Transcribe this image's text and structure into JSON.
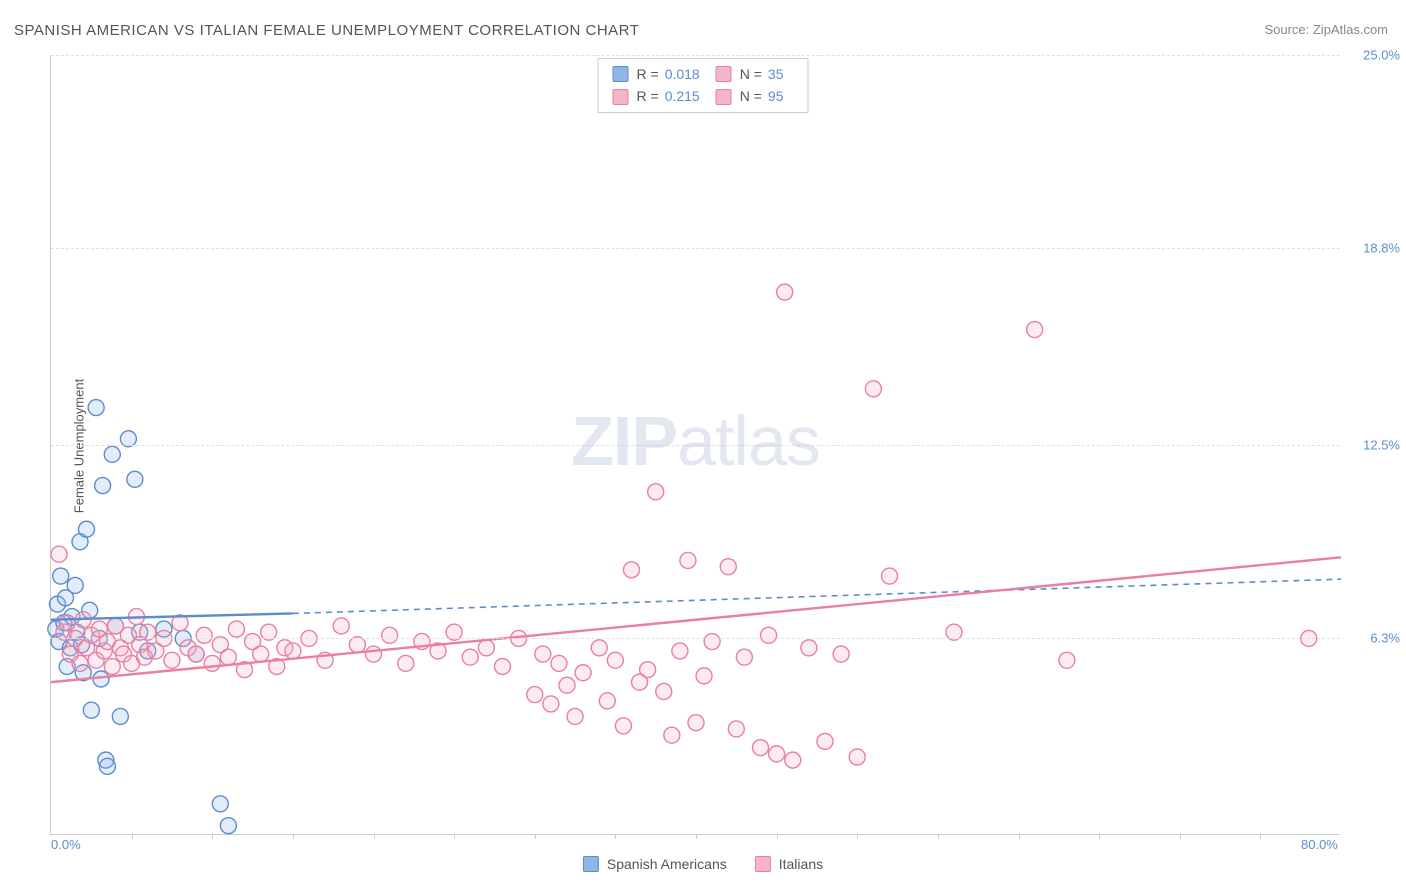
{
  "title": "SPANISH AMERICAN VS ITALIAN FEMALE UNEMPLOYMENT CORRELATION CHART",
  "source": "Source: ZipAtlas.com",
  "ylabel": "Female Unemployment",
  "watermark_zip": "ZIP",
  "watermark_atlas": "atlas",
  "chart": {
    "type": "scatter",
    "xlim": [
      0,
      80
    ],
    "ylim": [
      0,
      25
    ],
    "x_ticks_major": [
      0,
      80
    ],
    "x_ticks_major_labels": [
      "0.0%",
      "80.0%"
    ],
    "x_ticks_minor": [
      5,
      10,
      15,
      20,
      25,
      30,
      35,
      40,
      45,
      50,
      55,
      60,
      65,
      70,
      75
    ],
    "y_ticks": [
      6.3,
      12.5,
      18.8,
      25.0
    ],
    "y_tick_labels": [
      "6.3%",
      "12.5%",
      "18.8%",
      "25.0%"
    ],
    "background_color": "#ffffff",
    "grid_color": "#e0e0e0",
    "axis_color": "#cccccc",
    "tick_label_color": "#5b8dce",
    "marker_radius": 8,
    "marker_stroke_width": 1.4,
    "marker_fill_opacity": 0.25,
    "trend_line_width": 2.4,
    "series": [
      {
        "name": "Spanish Americans",
        "color_fill": "#8fb6e6",
        "color_stroke": "#5b8dce",
        "legend_R": "0.018",
        "legend_N": "35",
        "trend": {
          "x1": 0,
          "y1": 6.9,
          "x2_solid": 15,
          "y2_solid": 7.1,
          "x2_dash": 80,
          "y2_dash": 8.2
        },
        "points": [
          [
            0.3,
            6.6
          ],
          [
            0.4,
            7.4
          ],
          [
            0.5,
            6.2
          ],
          [
            0.6,
            8.3
          ],
          [
            0.8,
            6.8
          ],
          [
            0.9,
            7.6
          ],
          [
            1.0,
            5.4
          ],
          [
            1.2,
            6.0
          ],
          [
            1.3,
            7.0
          ],
          [
            1.5,
            8.0
          ],
          [
            1.6,
            6.5
          ],
          [
            1.8,
            9.4
          ],
          [
            1.9,
            6.1
          ],
          [
            2.0,
            5.2
          ],
          [
            2.2,
            9.8
          ],
          [
            2.4,
            7.2
          ],
          [
            2.5,
            4.0
          ],
          [
            2.8,
            13.7
          ],
          [
            3.0,
            6.3
          ],
          [
            3.1,
            5.0
          ],
          [
            3.2,
            11.2
          ],
          [
            3.4,
            2.4
          ],
          [
            3.5,
            2.2
          ],
          [
            3.8,
            12.2
          ],
          [
            4.0,
            6.7
          ],
          [
            4.3,
            3.8
          ],
          [
            4.8,
            12.7
          ],
          [
            5.2,
            11.4
          ],
          [
            5.5,
            6.5
          ],
          [
            6.0,
            5.9
          ],
          [
            7.0,
            6.6
          ],
          [
            8.2,
            6.3
          ],
          [
            9.0,
            5.8
          ],
          [
            10.5,
            1.0
          ],
          [
            11.0,
            0.3
          ]
        ]
      },
      {
        "name": "Italians",
        "color_fill": "#f4b5c7",
        "color_stroke": "#e97fa2",
        "legend_R": "0.215",
        "legend_N": "95",
        "trend": {
          "x1": 0,
          "y1": 4.9,
          "x2_solid": 80,
          "y2_solid": 8.9,
          "x2_dash": 80,
          "y2_dash": 8.9
        },
        "points": [
          [
            0.5,
            9.0
          ],
          [
            0.8,
            6.5
          ],
          [
            1.0,
            6.8
          ],
          [
            1.2,
            5.8
          ],
          [
            1.5,
            6.3
          ],
          [
            1.8,
            5.5
          ],
          [
            2.0,
            6.9
          ],
          [
            2.2,
            6.0
          ],
          [
            2.5,
            6.4
          ],
          [
            2.8,
            5.6
          ],
          [
            3.0,
            6.6
          ],
          [
            3.3,
            5.9
          ],
          [
            3.5,
            6.2
          ],
          [
            3.8,
            5.4
          ],
          [
            4.0,
            6.7
          ],
          [
            4.3,
            6.0
          ],
          [
            4.5,
            5.8
          ],
          [
            4.8,
            6.4
          ],
          [
            5.0,
            5.5
          ],
          [
            5.3,
            7.0
          ],
          [
            5.5,
            6.1
          ],
          [
            5.8,
            5.7
          ],
          [
            6.0,
            6.5
          ],
          [
            6.5,
            5.9
          ],
          [
            7.0,
            6.3
          ],
          [
            7.5,
            5.6
          ],
          [
            8.0,
            6.8
          ],
          [
            8.5,
            6.0
          ],
          [
            9.0,
            5.8
          ],
          [
            9.5,
            6.4
          ],
          [
            10.0,
            5.5
          ],
          [
            10.5,
            6.1
          ],
          [
            11.0,
            5.7
          ],
          [
            11.5,
            6.6
          ],
          [
            12.0,
            5.3
          ],
          [
            12.5,
            6.2
          ],
          [
            13.0,
            5.8
          ],
          [
            13.5,
            6.5
          ],
          [
            14.0,
            5.4
          ],
          [
            14.5,
            6.0
          ],
          [
            15.0,
            5.9
          ],
          [
            16.0,
            6.3
          ],
          [
            17.0,
            5.6
          ],
          [
            18.0,
            6.7
          ],
          [
            19.0,
            6.1
          ],
          [
            20.0,
            5.8
          ],
          [
            21.0,
            6.4
          ],
          [
            22.0,
            5.5
          ],
          [
            23.0,
            6.2
          ],
          [
            24.0,
            5.9
          ],
          [
            25.0,
            6.5
          ],
          [
            26.0,
            5.7
          ],
          [
            27.0,
            6.0
          ],
          [
            28.0,
            5.4
          ],
          [
            29.0,
            6.3
          ],
          [
            30.0,
            4.5
          ],
          [
            30.5,
            5.8
          ],
          [
            31.0,
            4.2
          ],
          [
            31.5,
            5.5
          ],
          [
            32.0,
            4.8
          ],
          [
            32.5,
            3.8
          ],
          [
            33.0,
            5.2
          ],
          [
            34.0,
            6.0
          ],
          [
            34.5,
            4.3
          ],
          [
            35.0,
            5.6
          ],
          [
            35.5,
            3.5
          ],
          [
            36.0,
            8.5
          ],
          [
            36.5,
            4.9
          ],
          [
            37.0,
            5.3
          ],
          [
            37.5,
            11.0
          ],
          [
            38.0,
            4.6
          ],
          [
            38.5,
            3.2
          ],
          [
            39.0,
            5.9
          ],
          [
            39.5,
            8.8
          ],
          [
            40.0,
            3.6
          ],
          [
            40.5,
            5.1
          ],
          [
            41.0,
            6.2
          ],
          [
            42.0,
            8.6
          ],
          [
            42.5,
            3.4
          ],
          [
            43.0,
            5.7
          ],
          [
            44.0,
            2.8
          ],
          [
            44.5,
            6.4
          ],
          [
            45.0,
            2.6
          ],
          [
            45.5,
            17.4
          ],
          [
            46.0,
            2.4
          ],
          [
            47.0,
            6.0
          ],
          [
            48.0,
            3.0
          ],
          [
            49.0,
            5.8
          ],
          [
            50.0,
            2.5
          ],
          [
            51.0,
            14.3
          ],
          [
            52.0,
            8.3
          ],
          [
            56.0,
            6.5
          ],
          [
            61.0,
            16.2
          ],
          [
            63.0,
            5.6
          ],
          [
            78.0,
            6.3
          ]
        ]
      }
    ]
  },
  "legend_top_labels": {
    "R": "R =",
    "N": "N ="
  },
  "legend_bottom": [
    {
      "label": "Spanish Americans",
      "fill": "#8fb6e6",
      "stroke": "#5b8dce"
    },
    {
      "label": "Italians",
      "fill": "#f4b5c7",
      "stroke": "#e97fa2"
    }
  ]
}
